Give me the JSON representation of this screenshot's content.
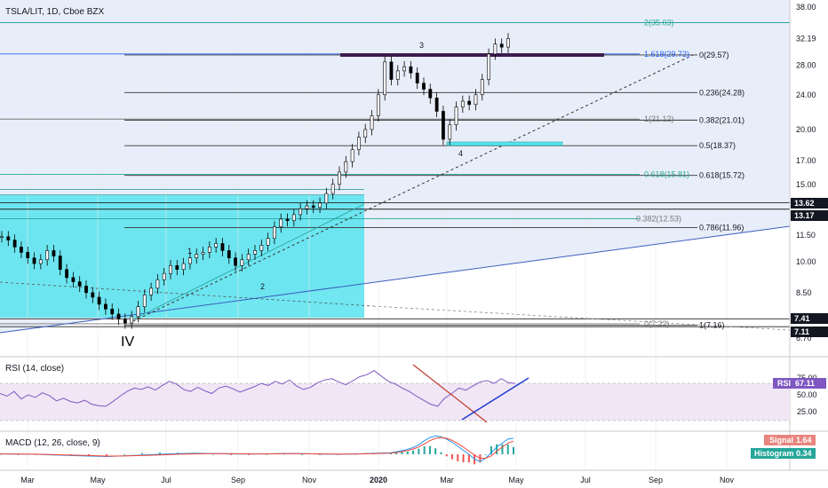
{
  "title": "TSLA/LIT, 1D, Cboe BZX",
  "chart_data": {
    "type": "candlestick",
    "price_axis": {
      "scale": "log",
      "ticks": [
        "38.00",
        "32.19",
        "28.00",
        "24.00",
        "20.00",
        "17.00",
        "15.00",
        "13.62",
        "13.17",
        "11.50",
        "10.00",
        "8.50",
        "7.41",
        "7.11",
        "6.70"
      ],
      "highlighted": [
        {
          "label": "32.19",
          "value": 32.19,
          "style": "plain"
        },
        {
          "label": "13.62",
          "value": 13.62,
          "style": "dark"
        },
        {
          "label": "13.17",
          "value": 13.17,
          "style": "dark"
        },
        {
          "label": "7.41",
          "value": 7.41,
          "style": "dark"
        },
        {
          "label": "7.11",
          "value": 7.11,
          "style": "dark"
        }
      ]
    },
    "time_axis": {
      "labels": [
        "Mar",
        "May",
        "Jul",
        "Sep",
        "Nov",
        "2020",
        "Mar",
        "May",
        "Jul",
        "Sep",
        "Nov"
      ]
    },
    "wave_labels": [
      "IV",
      "1",
      "2",
      "3",
      "4"
    ],
    "fib_levels_left": [
      {
        "text": "2(35.03)",
        "value": 35.03,
        "color": "#26a69a"
      },
      {
        "text": "1.618(29.72)",
        "value": 29.72,
        "color": "#2962ff"
      },
      {
        "text": "1(21.12)",
        "value": 21.12,
        "color": "#777777"
      },
      {
        "text": "0.618(15.81)",
        "value": 15.81,
        "color": "#26a69a"
      },
      {
        "text": "0.382(12.53)",
        "value": 12.53,
        "color": "#777777"
      },
      {
        "text": "0(7.22)",
        "value": 7.22,
        "color": "#777777"
      }
    ],
    "fib_levels_right": [
      {
        "text": "0(29.57)",
        "value": 29.57
      },
      {
        "text": "0.236(24.28)",
        "value": 24.28
      },
      {
        "text": "0.382(21.01)",
        "value": 21.01
      },
      {
        "text": "0.5(18.37)",
        "value": 18.37
      },
      {
        "text": "0.618(15.72)",
        "value": 15.72
      },
      {
        "text": "0.786(11.96)",
        "value": 11.96
      },
      {
        "text": "1(7.16)",
        "value": 7.16
      }
    ],
    "close_approx": [
      11.4,
      11.2,
      10.8,
      10.5,
      10.2,
      9.9,
      10.1,
      10.6,
      10.3,
      9.6,
      9.2,
      9.0,
      8.8,
      8.5,
      8.3,
      8.0,
      7.8,
      7.6,
      7.4,
      7.25,
      7.5,
      7.9,
      8.4,
      8.7,
      9.1,
      9.4,
      9.8,
      9.6,
      9.9,
      10.2,
      10.4,
      10.5,
      10.8,
      11.0,
      10.6,
      10.2,
      9.8,
      10.1,
      10.4,
      10.6,
      10.9,
      11.3,
      12.0,
      12.5,
      12.4,
      12.8,
      13.2,
      13.4,
      13.3,
      13.6,
      14.3,
      15.0,
      16.0,
      16.9,
      18.0,
      19.2,
      20.0,
      21.5,
      24.0,
      28.5,
      26.0,
      27.2,
      27.8,
      26.9,
      25.5,
      24.7,
      23.6,
      22.0,
      19.0,
      20.5,
      22.5,
      23.2,
      22.8,
      24.0,
      26.0,
      29.7,
      31.3,
      30.8,
      32.19
    ],
    "indicators": {
      "rsi": {
        "title": "RSI (14, close)",
        "value_label": "RSI",
        "value": "67.11",
        "ticks": [
          "75.00",
          "50.00",
          "25.00"
        ],
        "color": "#7e57c2",
        "values": [
          52,
          48,
          55,
          44,
          50,
          46,
          53,
          49,
          41,
          45,
          40,
          38,
          42,
          36,
          34,
          33,
          40,
          48,
          55,
          60,
          58,
          62,
          57,
          64,
          70,
          66,
          58,
          55,
          61,
          56,
          52,
          60,
          63,
          59,
          54,
          58,
          62,
          67,
          64,
          70,
          66,
          72,
          63,
          58,
          61,
          68,
          72,
          74,
          69,
          65,
          71,
          77,
          80,
          86,
          78,
          70,
          66,
          60,
          55,
          48,
          42,
          36,
          33,
          45,
          52,
          60,
          57,
          63,
          69,
          71,
          67,
          74,
          68,
          67
        ]
      },
      "macd": {
        "title": "MACD (12, 26, close, 9)",
        "signal_label": "Signal",
        "signal_value": "1.64",
        "histogram_label": "Histogram",
        "histogram_value": "0.34",
        "macd_line": [
          0.05,
          0.02,
          0.0,
          -0.08,
          -0.15,
          -0.22,
          -0.28,
          -0.2,
          -0.1,
          0.0,
          0.08,
          0.12,
          0.1,
          0.05,
          0.02,
          0.06,
          0.1,
          0.08,
          0.03,
          0.0,
          0.05,
          0.12,
          0.2,
          0.32,
          0.45,
          0.62,
          0.85,
          1.2,
          1.7,
          2.1,
          2.3,
          2.2,
          1.9,
          1.5,
          1.0,
          0.5,
          0.0,
          -0.6,
          -0.9,
          -0.5,
          0.2,
          0.9,
          1.4,
          1.9,
          2.0
        ],
        "signal_line": [
          0.04,
          0.03,
          0.01,
          -0.04,
          -0.1,
          -0.16,
          -0.22,
          -0.21,
          -0.16,
          -0.08,
          0.0,
          0.06,
          0.09,
          0.08,
          0.05,
          0.05,
          0.08,
          0.08,
          0.05,
          0.02,
          0.03,
          0.08,
          0.14,
          0.22,
          0.33,
          0.48,
          0.66,
          0.92,
          1.3,
          1.7,
          2.0,
          2.1,
          2.0,
          1.75,
          1.35,
          0.9,
          0.4,
          -0.1,
          -0.5,
          -0.5,
          -0.2,
          0.4,
          0.9,
          1.4,
          1.64
        ]
      }
    }
  }
}
